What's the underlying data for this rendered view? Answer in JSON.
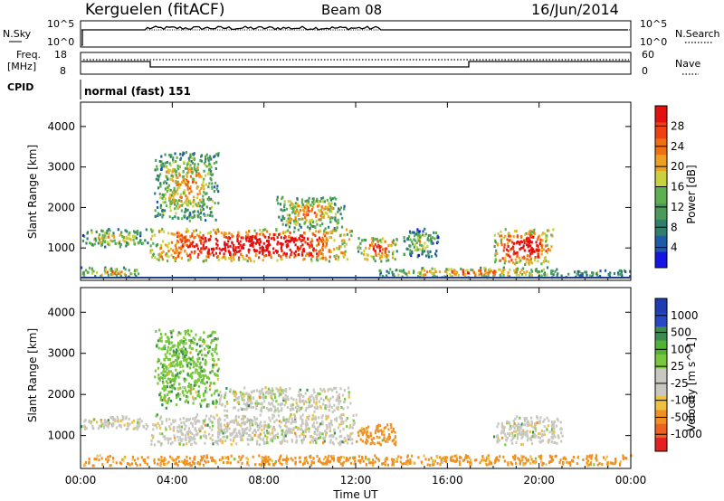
{
  "header": {
    "station": "Kerguelen (fitACF)",
    "beam": "Beam 08",
    "date": "16/Jun/2014"
  },
  "panels": {
    "nsky_label": "N.Sky",
    "nsky_tick_hi": "10^5",
    "nsky_tick_lo": "10^0",
    "nsearch_label": "N.Search",
    "nsearch_tick_hi": "10^5",
    "nsearch_tick_lo": "10^0",
    "freq_label_1": "Freq.",
    "freq_label_2": "[MHz]",
    "freq_tick_hi": "18",
    "freq_tick_lo": "8",
    "nave_label": "Nave",
    "nave_tick_hi": "60",
    "nave_tick_lo": "0",
    "cpid_label": "CPID",
    "cpid_text": "normal (fast) 151"
  },
  "colors": {
    "frame": "#000000",
    "power_scale": [
      "#1414e6",
      "#1e5aaa",
      "#2e7f6e",
      "#4a9b5a",
      "#5cb050",
      "#c8d23c",
      "#f0a020",
      "#f07010",
      "#f04010",
      "#e60f0f"
    ],
    "velocity_scale": [
      "#1e3cb4",
      "#2846c8",
      "#3c8c50",
      "#50b432",
      "#78c83c",
      "#c8c8c0",
      "#c8c8c0",
      "#f0c040",
      "#f09020",
      "#f06020",
      "#e62020"
    ]
  },
  "chart_data": [
    {
      "type": "heatmap",
      "name": "power",
      "xlabel": "Time UT",
      "ylabel": "Slant Range [km]",
      "x_ticks": [
        "00:00",
        "04:00",
        "08:00",
        "12:00",
        "16:00",
        "20:00",
        "00:00"
      ],
      "y_ticks": [
        "1000",
        "2000",
        "3000",
        "4000"
      ],
      "ylim": [
        200,
        4600
      ],
      "colorbar_label": "Power [dB]",
      "colorbar_ticks": [
        "4",
        "8",
        "12",
        "16",
        "20",
        "24",
        "28"
      ],
      "echo_regions": [
        {
          "t0": 0.0,
          "t1": 2.9,
          "r0": 1050,
          "r1": 1500,
          "level": 0.45
        },
        {
          "t0": 0.0,
          "t1": 2.6,
          "r0": 300,
          "r1": 550,
          "level": 0.55
        },
        {
          "t0": 3.0,
          "t1": 11.8,
          "r0": 700,
          "r1": 1500,
          "level": 0.95
        },
        {
          "t0": 3.2,
          "t1": 6.0,
          "r0": 1700,
          "r1": 3400,
          "level": 0.5
        },
        {
          "t0": 8.5,
          "t1": 11.5,
          "r0": 1500,
          "r1": 2300,
          "level": 0.55
        },
        {
          "t0": 12.0,
          "t1": 13.8,
          "r0": 700,
          "r1": 1300,
          "level": 0.7
        },
        {
          "t0": 14.0,
          "t1": 15.6,
          "r0": 800,
          "r1": 1500,
          "level": 0.4
        },
        {
          "t0": 18.0,
          "t1": 20.6,
          "r0": 600,
          "r1": 1500,
          "level": 0.85
        },
        {
          "t0": 13.0,
          "t1": 21.0,
          "r0": 300,
          "r1": 550,
          "level": 0.6
        },
        {
          "t0": 21.0,
          "t1": 24.0,
          "r0": 300,
          "r1": 500,
          "level": 0.3
        }
      ]
    },
    {
      "type": "heatmap",
      "name": "velocity",
      "xlabel": "Time UT",
      "ylabel": "Slant Range [km]",
      "x_ticks": [
        "00:00",
        "04:00",
        "08:00",
        "12:00",
        "16:00",
        "20:00",
        "00:00"
      ],
      "y_ticks": [
        "1000",
        "2000",
        "3000",
        "4000"
      ],
      "ylim": [
        200,
        4600
      ],
      "colorbar_label": "Velocity [m s^-1]",
      "colorbar_ticks": [
        "1000",
        "500",
        "100",
        "25",
        "-25",
        "-100",
        "-500",
        "-1000"
      ],
      "echo_regions": [
        {
          "t0": 0.0,
          "t1": 2.9,
          "r0": 1150,
          "r1": 1500,
          "vel": 0
        },
        {
          "t0": 3.0,
          "t1": 12.0,
          "r0": 800,
          "r1": 1550,
          "vel": 0
        },
        {
          "t0": 3.2,
          "t1": 6.0,
          "r0": 1700,
          "r1": 3600,
          "vel": 80
        },
        {
          "t0": 6.0,
          "t1": 11.8,
          "r0": 1600,
          "r1": 2200,
          "vel": 0
        },
        {
          "t0": 12.0,
          "t1": 13.8,
          "r0": 800,
          "r1": 1300,
          "vel": -150
        },
        {
          "t0": 18.0,
          "t1": 21.0,
          "r0": 800,
          "r1": 1500,
          "vel": 0
        },
        {
          "t0": 0.0,
          "t1": 24.0,
          "r0": 300,
          "r1": 550,
          "vel": -120
        }
      ]
    }
  ]
}
